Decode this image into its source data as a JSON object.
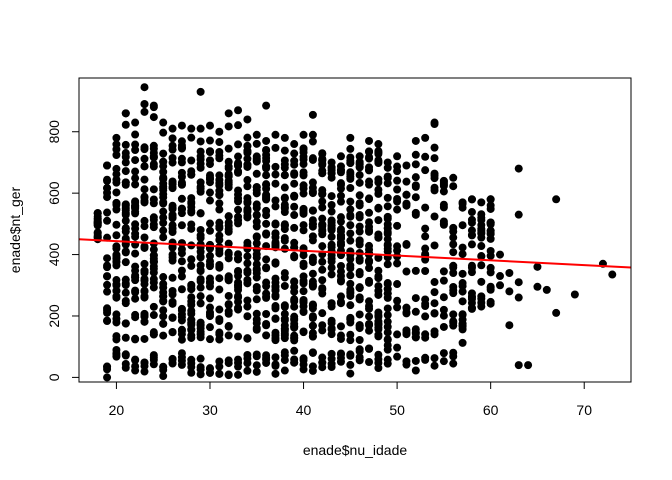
{
  "chart_data": {
    "type": "scatter",
    "xlabel": "enade$nu_idade",
    "ylabel": "enade$nt_ger",
    "xlim": [
      16,
      75
    ],
    "ylim": [
      -15,
      975
    ],
    "xticks": [
      20,
      30,
      40,
      50,
      60,
      70
    ],
    "yticks": [
      0,
      200,
      400,
      600,
      800
    ],
    "grid": false,
    "legend": "none",
    "point_color": "#000000",
    "regression_line": {
      "intercept": 474.7,
      "slope": -1.56,
      "color": "#ff0000",
      "x_range": [
        16,
        75
      ]
    },
    "columns": [
      {
        "x": 18,
        "ymin": 440,
        "ymax": 535,
        "dense": false
      },
      {
        "x": 19,
        "ymin": 0,
        "ymax": 690,
        "dense": false
      },
      {
        "x": 20,
        "ymin": 30,
        "ymax": 780,
        "dense": true
      },
      {
        "x": 21,
        "ymin": 15,
        "ymax": 860,
        "dense": true
      },
      {
        "x": 22,
        "ymin": 0,
        "ymax": 830,
        "dense": true
      },
      {
        "x": 23,
        "ymin": 0,
        "ymax": 890,
        "dense": true
      },
      {
        "x": 24,
        "ymin": 10,
        "ymax": 880,
        "dense": true
      },
      {
        "x": 25,
        "ymin": 0,
        "ymax": 830,
        "dense": true
      },
      {
        "x": 26,
        "ymin": 10,
        "ymax": 810,
        "dense": true
      },
      {
        "x": 27,
        "ymin": 10,
        "ymax": 820,
        "dense": true
      },
      {
        "x": 28,
        "ymin": 0,
        "ymax": 810,
        "dense": true
      },
      {
        "x": 29,
        "ymin": 0,
        "ymax": 810,
        "dense": true
      },
      {
        "x": 30,
        "ymin": 0,
        "ymax": 820,
        "dense": true
      },
      {
        "x": 31,
        "ymin": 10,
        "ymax": 800,
        "dense": true
      },
      {
        "x": 32,
        "ymin": 0,
        "ymax": 860,
        "dense": true
      },
      {
        "x": 33,
        "ymin": 0,
        "ymax": 870,
        "dense": true
      },
      {
        "x": 34,
        "ymin": 10,
        "ymax": 840,
        "dense": true
      },
      {
        "x": 35,
        "ymin": 10,
        "ymax": 790,
        "dense": true
      },
      {
        "x": 36,
        "ymin": 10,
        "ymax": 770,
        "dense": true
      },
      {
        "x": 37,
        "ymin": 0,
        "ymax": 790,
        "dense": true
      },
      {
        "x": 38,
        "ymin": 20,
        "ymax": 780,
        "dense": true
      },
      {
        "x": 39,
        "ymin": 20,
        "ymax": 760,
        "dense": true
      },
      {
        "x": 40,
        "ymin": 10,
        "ymax": 790,
        "dense": true
      },
      {
        "x": 41,
        "ymin": 20,
        "ymax": 790,
        "dense": true
      },
      {
        "x": 42,
        "ymin": 20,
        "ymax": 730,
        "dense": true
      },
      {
        "x": 43,
        "ymin": 30,
        "ymax": 700,
        "dense": true
      },
      {
        "x": 44,
        "ymin": 20,
        "ymax": 720,
        "dense": true
      },
      {
        "x": 45,
        "ymin": 10,
        "ymax": 780,
        "dense": true
      },
      {
        "x": 46,
        "ymin": 30,
        "ymax": 720,
        "dense": true
      },
      {
        "x": 47,
        "ymin": 30,
        "ymax": 770,
        "dense": true
      },
      {
        "x": 48,
        "ymin": 30,
        "ymax": 760,
        "dense": true
      },
      {
        "x": 49,
        "ymin": 40,
        "ymax": 700,
        "dense": true
      },
      {
        "x": 50,
        "ymin": 50,
        "ymax": 720,
        "dense": false
      },
      {
        "x": 51,
        "ymin": 40,
        "ymax": 690,
        "dense": false
      },
      {
        "x": 52,
        "ymin": 20,
        "ymax": 770,
        "dense": false
      },
      {
        "x": 53,
        "ymin": 30,
        "ymax": 780,
        "dense": false
      },
      {
        "x": 54,
        "ymin": 0,
        "ymax": 830,
        "dense": false
      },
      {
        "x": 55,
        "ymin": 30,
        "ymax": 640,
        "dense": false
      },
      {
        "x": 56,
        "ymin": 40,
        "ymax": 650,
        "dense": false
      },
      {
        "x": 57,
        "ymin": 100,
        "ymax": 570,
        "dense": false
      },
      {
        "x": 58,
        "ymin": 200,
        "ymax": 580,
        "dense": false
      },
      {
        "x": 59,
        "ymin": 230,
        "ymax": 570,
        "dense": false
      },
      {
        "x": 60,
        "ymin": 240,
        "ymax": 580,
        "dense": false
      }
    ],
    "points": [
      {
        "x": 18,
        "y": 535
      },
      {
        "x": 18,
        "y": 450
      },
      {
        "x": 19,
        "y": 690
      },
      {
        "x": 19,
        "y": 640
      },
      {
        "x": 19,
        "y": 510
      },
      {
        "x": 19,
        "y": 455
      },
      {
        "x": 19,
        "y": 225
      },
      {
        "x": 19,
        "y": 185
      },
      {
        "x": 19,
        "y": 35
      },
      {
        "x": 19,
        "y": 0
      },
      {
        "x": 21,
        "y": 860
      },
      {
        "x": 23,
        "y": 945
      },
      {
        "x": 23,
        "y": 890
      },
      {
        "x": 24,
        "y": 885
      },
      {
        "x": 29,
        "y": 930
      },
      {
        "x": 36,
        "y": 885
      },
      {
        "x": 41,
        "y": 855
      },
      {
        "x": 54,
        "y": 825
      },
      {
        "x": 56,
        "y": 45
      },
      {
        "x": 57,
        "y": 175
      },
      {
        "x": 58,
        "y": 255
      },
      {
        "x": 60,
        "y": 240
      },
      {
        "x": 60,
        "y": 560
      },
      {
        "x": 60,
        "y": 580
      },
      {
        "x": 61,
        "y": 400
      },
      {
        "x": 61,
        "y": 330
      },
      {
        "x": 61,
        "y": 300
      },
      {
        "x": 62,
        "y": 340
      },
      {
        "x": 62,
        "y": 280
      },
      {
        "x": 62,
        "y": 170
      },
      {
        "x": 63,
        "y": 680
      },
      {
        "x": 63,
        "y": 530
      },
      {
        "x": 63,
        "y": 310
      },
      {
        "x": 63,
        "y": 260
      },
      {
        "x": 63,
        "y": 40
      },
      {
        "x": 64,
        "y": 40
      },
      {
        "x": 65,
        "y": 360
      },
      {
        "x": 65,
        "y": 295
      },
      {
        "x": 66,
        "y": 285
      },
      {
        "x": 67,
        "y": 580
      },
      {
        "x": 67,
        "y": 210
      },
      {
        "x": 69,
        "y": 270
      },
      {
        "x": 72,
        "y": 370
      },
      {
        "x": 73,
        "y": 335
      }
    ]
  }
}
